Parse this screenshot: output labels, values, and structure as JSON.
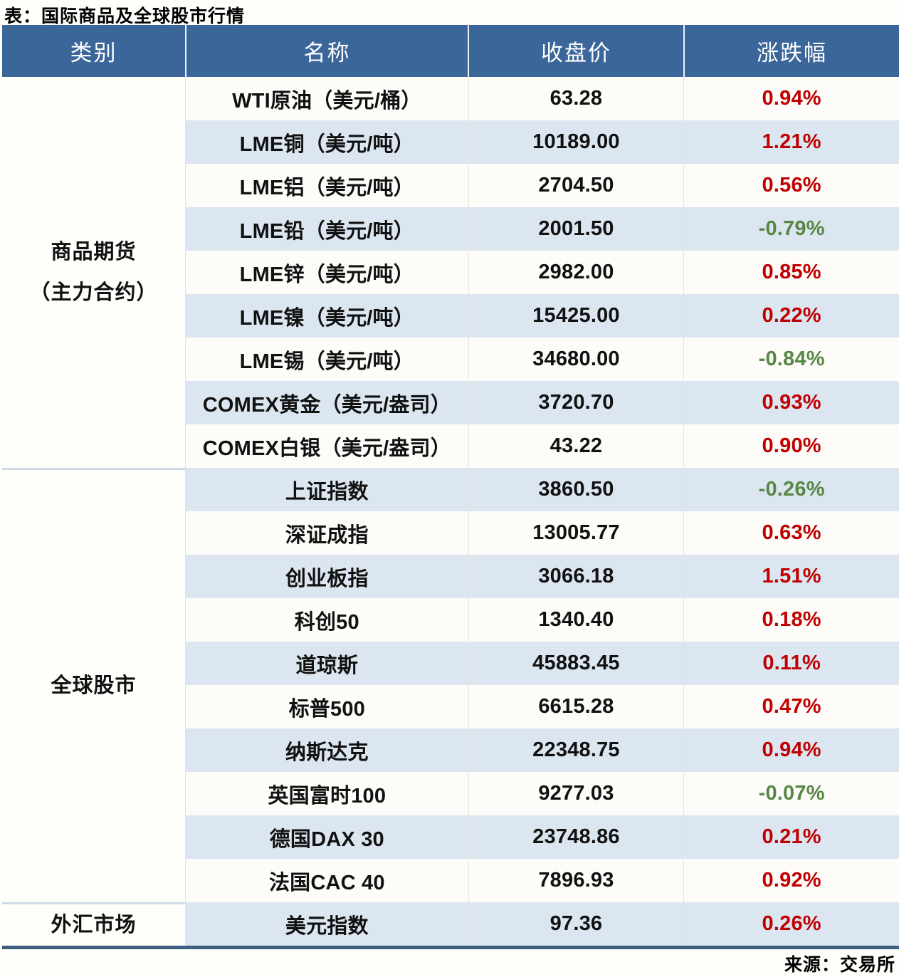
{
  "title": "表：国际商品及全球股市行情",
  "source": "来源：交易所",
  "colors": {
    "header_bg": "#3a6699",
    "row_alt": "#dce6f1",
    "up_red": "#c00000",
    "down_green": "#578745",
    "table_bottom_border": "#3e5e80"
  },
  "table": {
    "headers": [
      "类别",
      "名称",
      "收盘价",
      "涨跌幅"
    ],
    "groups": [
      {
        "category_lines": [
          "商品期货",
          "（主力合约）"
        ],
        "rows": [
          {
            "name": "WTI原油（美元/桶）",
            "close": "63.28",
            "change": "0.94%",
            "dir": "up"
          },
          {
            "name": "LME铜（美元/吨）",
            "close": "10189.00",
            "change": "1.21%",
            "dir": "up"
          },
          {
            "name": "LME铝（美元/吨）",
            "close": "2704.50",
            "change": "0.56%",
            "dir": "up"
          },
          {
            "name": "LME铅（美元/吨）",
            "close": "2001.50",
            "change": "-0.79%",
            "dir": "down"
          },
          {
            "name": "LME锌（美元/吨）",
            "close": "2982.00",
            "change": "0.85%",
            "dir": "up"
          },
          {
            "name": "LME镍（美元/吨）",
            "close": "15425.00",
            "change": "0.22%",
            "dir": "up"
          },
          {
            "name": "LME锡（美元/吨）",
            "close": "34680.00",
            "change": "-0.84%",
            "dir": "down"
          },
          {
            "name": "COMEX黄金（美元/盎司）",
            "close": "3720.70",
            "change": "0.93%",
            "dir": "up"
          },
          {
            "name": "COMEX白银（美元/盎司）",
            "close": "43.22",
            "change": "0.90%",
            "dir": "up"
          }
        ]
      },
      {
        "category_lines": [
          "全球股市"
        ],
        "rows": [
          {
            "name": "上证指数",
            "close": "3860.50",
            "change": "-0.26%",
            "dir": "down"
          },
          {
            "name": "深证成指",
            "close": "13005.77",
            "change": "0.63%",
            "dir": "up"
          },
          {
            "name": "创业板指",
            "close": "3066.18",
            "change": "1.51%",
            "dir": "up"
          },
          {
            "name": "科创50",
            "close": "1340.40",
            "change": "0.18%",
            "dir": "up"
          },
          {
            "name": "道琼斯",
            "close": "45883.45",
            "change": "0.11%",
            "dir": "up"
          },
          {
            "name": "标普500",
            "close": "6615.28",
            "change": "0.47%",
            "dir": "up"
          },
          {
            "name": "纳斯达克",
            "close": "22348.75",
            "change": "0.94%",
            "dir": "up"
          },
          {
            "name": "英国富时100",
            "close": "9277.03",
            "change": "-0.07%",
            "dir": "down"
          },
          {
            "name": "德国DAX 30",
            "close": "23748.86",
            "change": "0.21%",
            "dir": "up"
          },
          {
            "name": "法国CAC 40",
            "close": "7896.93",
            "change": "0.92%",
            "dir": "up"
          }
        ]
      },
      {
        "category_lines": [
          "外汇市场"
        ],
        "rows": [
          {
            "name": "美元指数",
            "close": "97.36",
            "change": "0.26%",
            "dir": "up"
          }
        ]
      }
    ]
  },
  "chart_data": {
    "type": "table",
    "title": "表：国际商品及全球股市行情",
    "columns": [
      "类别",
      "名称",
      "收盘价",
      "涨跌幅"
    ],
    "rows": [
      [
        "商品期货（主力合约）",
        "WTI原油（美元/桶）",
        63.28,
        "0.94%"
      ],
      [
        "商品期货（主力合约）",
        "LME铜（美元/吨）",
        10189.0,
        "1.21%"
      ],
      [
        "商品期货（主力合约）",
        "LME铝（美元/吨）",
        2704.5,
        "0.56%"
      ],
      [
        "商品期货（主力合约）",
        "LME铅（美元/吨）",
        2001.5,
        "-0.79%"
      ],
      [
        "商品期货（主力合约）",
        "LME锌（美元/吨）",
        2982.0,
        "0.85%"
      ],
      [
        "商品期货（主力合约）",
        "LME镍（美元/吨）",
        15425.0,
        "0.22%"
      ],
      [
        "商品期货（主力合约）",
        "LME锡（美元/吨）",
        34680.0,
        "-0.84%"
      ],
      [
        "商品期货（主力合约）",
        "COMEX黄金（美元/盎司）",
        3720.7,
        "0.93%"
      ],
      [
        "商品期货（主力合约）",
        "COMEX白银（美元/盎司）",
        43.22,
        "0.90%"
      ],
      [
        "全球股市",
        "上证指数",
        3860.5,
        "-0.26%"
      ],
      [
        "全球股市",
        "深证成指",
        13005.77,
        "0.63%"
      ],
      [
        "全球股市",
        "创业板指",
        3066.18,
        "1.51%"
      ],
      [
        "全球股市",
        "科创50",
        1340.4,
        "0.18%"
      ],
      [
        "全球股市",
        "道琼斯",
        45883.45,
        "0.11%"
      ],
      [
        "全球股市",
        "标普500",
        6615.28,
        "0.47%"
      ],
      [
        "全球股市",
        "纳斯达克",
        22348.75,
        "0.94%"
      ],
      [
        "全球股市",
        "英国富时100",
        9277.03,
        "-0.07%"
      ],
      [
        "全球股市",
        "德国DAX 30",
        23748.86,
        "0.21%"
      ],
      [
        "全球股市",
        "法国CAC 40",
        7896.93,
        "0.92%"
      ],
      [
        "外汇市场",
        "美元指数",
        97.36,
        "0.26%"
      ]
    ],
    "notes": "涨跌幅颜色：正值红色(#c00000)，负值绿色(#578745)；行背景白/浅蓝交替",
    "source": "来源：交易所"
  }
}
